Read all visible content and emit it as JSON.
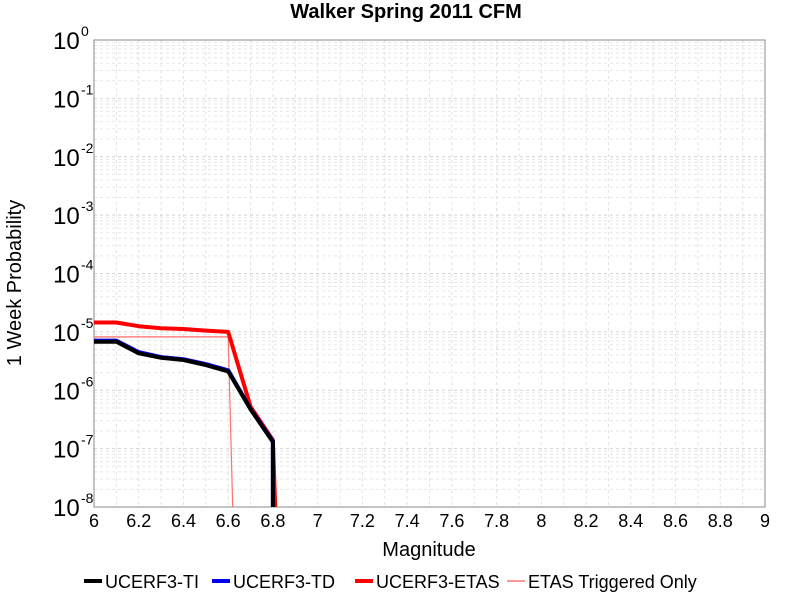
{
  "chart_data": {
    "type": "line",
    "title": "Walker Spring 2011 CFM",
    "xlabel": "Magnitude",
    "ylabel": "1 Week Probability",
    "xlim": [
      6,
      9
    ],
    "ylim": [
      1e-08,
      1
    ],
    "y_scale": "log",
    "grid": true,
    "legend_position": "bottom",
    "x_ticks": [
      "6",
      "6.2",
      "6.4",
      "6.6",
      "6.8",
      "7",
      "7.2",
      "7.4",
      "7.6",
      "7.8",
      "8",
      "8.2",
      "8.4",
      "8.6",
      "8.8",
      "9"
    ],
    "y_ticks": [
      {
        "base": "10",
        "exp": "0"
      },
      {
        "base": "10",
        "exp": "-1"
      },
      {
        "base": "10",
        "exp": "-2"
      },
      {
        "base": "10",
        "exp": "-3"
      },
      {
        "base": "10",
        "exp": "-4"
      },
      {
        "base": "10",
        "exp": "-5"
      },
      {
        "base": "10",
        "exp": "-6"
      },
      {
        "base": "10",
        "exp": "-7"
      },
      {
        "base": "10",
        "exp": "-8"
      }
    ],
    "series": [
      {
        "name": "UCERF3-TI",
        "color": "#000000",
        "line_width": "thick",
        "x": [
          6.0,
          6.1,
          6.2,
          6.3,
          6.4,
          6.5,
          6.6,
          6.7,
          6.8,
          6.8
        ],
        "y": [
          6.8e-06,
          6.8e-06,
          4.3e-06,
          3.6e-06,
          3.3e-06,
          2.7e-06,
          2.1e-06,
          4.7e-07,
          1.3e-07,
          1e-08
        ]
      },
      {
        "name": "UCERF3-TD",
        "color": "#0000ee",
        "line_width": "thick",
        "x": [
          6.0,
          6.1,
          6.2,
          6.3,
          6.4,
          6.5,
          6.6,
          6.7,
          6.8,
          6.8
        ],
        "y": [
          7.1e-06,
          7.1e-06,
          4.5e-06,
          3.7e-06,
          3.4e-06,
          2.8e-06,
          2.2e-06,
          4.8e-07,
          1.35e-07,
          1e-08
        ]
      },
      {
        "name": "UCERF3-ETAS",
        "color": "#ff0000",
        "line_width": "thick",
        "x": [
          6.0,
          6.1,
          6.2,
          6.3,
          6.4,
          6.5,
          6.6,
          6.7,
          6.8,
          6.81
        ],
        "y": [
          1.45e-05,
          1.45e-05,
          1.25e-05,
          1.15e-05,
          1.12e-05,
          1.05e-05,
          1e-05,
          5.2e-07,
          1.4e-07,
          1e-08
        ]
      },
      {
        "name": "ETAS Triggered Only",
        "color": "#ff7070",
        "line_width": "thin",
        "x": [
          6.0,
          6.6,
          6.6,
          6.62
        ],
        "y": [
          8.2e-06,
          8.2e-06,
          8.2e-06,
          1e-08
        ]
      }
    ]
  }
}
